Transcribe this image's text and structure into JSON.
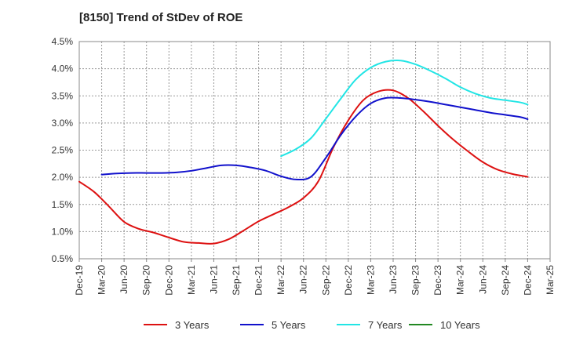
{
  "chart_data": {
    "type": "line",
    "title": "[8150]  Trend of StDev of ROE",
    "xlabel": "",
    "ylabel": "",
    "x_ticks": [
      "Dec-19",
      "Mar-20",
      "Jun-20",
      "Sep-20",
      "Dec-20",
      "Mar-21",
      "Jun-21",
      "Sep-21",
      "Dec-21",
      "Mar-22",
      "Jun-22",
      "Sep-22",
      "Dec-22",
      "Mar-23",
      "Jun-23",
      "Sep-23",
      "Dec-23",
      "Mar-24",
      "Jun-24",
      "Sep-24",
      "Dec-24",
      "Mar-25"
    ],
    "y_ticks": [
      "0.5%",
      "1.0%",
      "1.5%",
      "2.0%",
      "2.5%",
      "3.0%",
      "3.5%",
      "4.0%",
      "4.5%"
    ],
    "ylim": [
      0.5,
      4.5
    ],
    "y_unit": "%",
    "grid": true,
    "legend_position": "bottom",
    "series": [
      {
        "name": "3 Years",
        "color": "#dd1111",
        "x": [
          "Dec-19",
          "Feb-20",
          "Apr-20",
          "Jun-20",
          "Aug-20",
          "Oct-20",
          "Dec-20",
          "Feb-21",
          "Apr-21",
          "Jun-21",
          "Aug-21",
          "Oct-21",
          "Dec-21",
          "Feb-22",
          "Apr-22",
          "Jun-22",
          "Aug-22",
          "Oct-22",
          "Dec-22",
          "Feb-23",
          "Apr-23",
          "Jun-23",
          "Aug-23",
          "Oct-23",
          "Dec-23",
          "Feb-24",
          "Apr-24",
          "Jun-24",
          "Aug-24",
          "Oct-24",
          "Dec-24"
        ],
        "values": [
          1.92,
          1.73,
          1.46,
          1.18,
          1.05,
          0.98,
          0.89,
          0.81,
          0.79,
          0.78,
          0.86,
          1.02,
          1.19,
          1.32,
          1.45,
          1.62,
          1.93,
          2.55,
          3.05,
          3.42,
          3.58,
          3.6,
          3.46,
          3.22,
          2.95,
          2.7,
          2.48,
          2.28,
          2.14,
          2.06,
          2.01
        ]
      },
      {
        "name": "5 Years",
        "color": "#1111cc",
        "x": [
          "Mar-20",
          "May-20",
          "Jul-20",
          "Sep-20",
          "Nov-20",
          "Jan-21",
          "Mar-21",
          "May-21",
          "Jul-21",
          "Sep-21",
          "Nov-21",
          "Jan-22",
          "Mar-22",
          "May-22",
          "Jul-22",
          "Sep-22",
          "Nov-22",
          "Jan-23",
          "Mar-23",
          "May-23",
          "Jul-23",
          "Sep-23",
          "Nov-23",
          "Jan-24",
          "Mar-24",
          "May-24",
          "Jul-24",
          "Sep-24",
          "Nov-24",
          "Dec-24"
        ],
        "values": [
          2.05,
          2.07,
          2.08,
          2.08,
          2.08,
          2.09,
          2.12,
          2.17,
          2.22,
          2.22,
          2.18,
          2.12,
          2.02,
          1.96,
          2.01,
          2.36,
          2.78,
          3.12,
          3.36,
          3.46,
          3.46,
          3.43,
          3.39,
          3.34,
          3.29,
          3.24,
          3.19,
          3.15,
          3.11,
          3.07
        ]
      },
      {
        "name": "7 Years",
        "color": "#22e5e5",
        "x": [
          "Mar-22",
          "May-22",
          "Jul-22",
          "Sep-22",
          "Nov-22",
          "Jan-23",
          "Mar-23",
          "May-23",
          "Jul-23",
          "Sep-23",
          "Nov-23",
          "Jan-24",
          "Mar-24",
          "May-24",
          "Jul-24",
          "Sep-24",
          "Nov-24",
          "Dec-24"
        ],
        "values": [
          2.39,
          2.52,
          2.72,
          3.08,
          3.45,
          3.8,
          4.02,
          4.13,
          4.15,
          4.08,
          3.96,
          3.82,
          3.66,
          3.54,
          3.46,
          3.42,
          3.38,
          3.34
        ]
      },
      {
        "name": "10 Years",
        "color": "#228822",
        "x": [],
        "values": []
      }
    ]
  }
}
